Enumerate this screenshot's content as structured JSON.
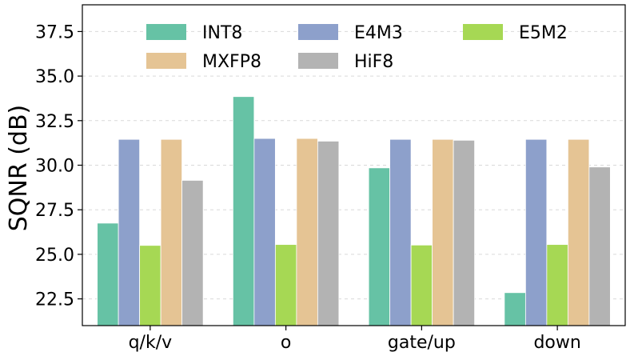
{
  "chart_data": {
    "type": "bar",
    "title": "",
    "xlabel": "",
    "ylabel": "SQNR (dB)",
    "ylim": [
      21.0,
      39.0
    ],
    "yticks": [
      22.5,
      25.0,
      27.5,
      30.0,
      32.5,
      35.0,
      37.5
    ],
    "ytick_labels": [
      "22.5",
      "25.0",
      "27.5",
      "30.0",
      "32.5",
      "35.0",
      "37.5"
    ],
    "grid": true,
    "legend_position": "top",
    "categories": [
      "q/k/v",
      "o",
      "gate/up",
      "down"
    ],
    "series": [
      {
        "name": "INT8",
        "color": "#66c2a5",
        "values": [
          26.75,
          33.85,
          29.85,
          22.85
        ]
      },
      {
        "name": "E4M3",
        "color": "#8da0cb",
        "values": [
          31.45,
          31.5,
          31.45,
          31.45
        ]
      },
      {
        "name": "E5M2",
        "color": "#a6d854",
        "values": [
          25.5,
          25.55,
          25.52,
          25.55
        ]
      },
      {
        "name": "MXFP8",
        "color": "#e5c494",
        "values": [
          31.45,
          31.5,
          31.45,
          31.45
        ]
      },
      {
        "name": "HiF8",
        "color": "#b3b3b3",
        "values": [
          29.15,
          31.35,
          31.4,
          29.9
        ]
      }
    ]
  }
}
